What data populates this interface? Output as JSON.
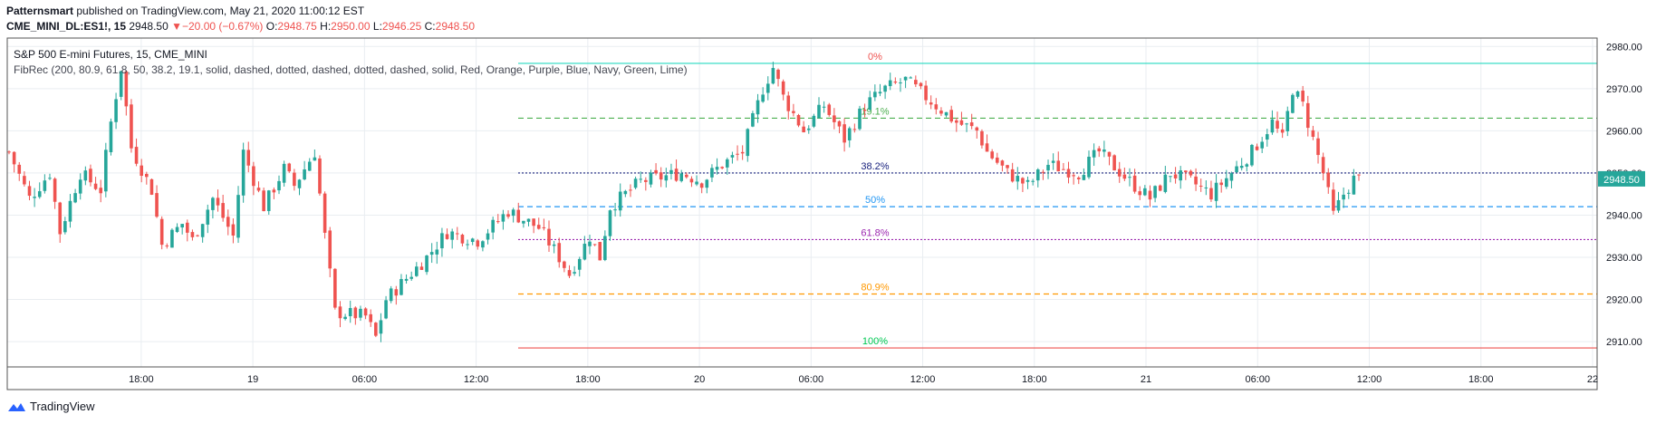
{
  "header": {
    "publisher": "Patternsmart",
    "published_text": "published on TradingView.com, May 21, 2020 11:00:12 EST",
    "symbol": "CME_MINI_DL:ES1!, 15",
    "last": "2948.50",
    "change": "−20.00 (−0.67%)",
    "o_label": "O:",
    "o_value": "2948.75",
    "h_label": "H:",
    "h_value": "2950.00",
    "l_label": "L:",
    "l_value": "2946.25",
    "c_label": "C:",
    "c_value": "2948.50"
  },
  "legend": {
    "title": "S&P 500 E-mini Futures, 15, CME_MINI",
    "indicator": "FibRec (200, 80.9, 61.8, 50, 38.2, 19.1, solid, dashed, dotted, dashed, dotted, dashed, solid, Red, Orange, Purple, Blue, Navy, Green, Lime)"
  },
  "price_badge": "2948.50",
  "footer": {
    "brand": "TradingView"
  },
  "colors": {
    "up": "#26a69a",
    "down": "#ef5350",
    "grid": "#e9edf1",
    "badge": "#26a69a"
  },
  "chart_data": {
    "type": "candlestick",
    "title": "S&P 500 E-mini Futures, 15, CME_MINI",
    "y_range": [
      2904,
      2982
    ],
    "y_ticks": [
      2910,
      2920,
      2930,
      2940,
      2950,
      2960,
      2970,
      2980
    ],
    "y_tick_labels": [
      "2910.00",
      "2920.00",
      "2930.00",
      "2940.00",
      "2950.00",
      "2960.00",
      "2970.00",
      "2980.00"
    ],
    "x_range_hours": [
      -7.2,
      56.2
    ],
    "x_ticks": [
      {
        "h": 0,
        "label": "18:00"
      },
      {
        "h": 6,
        "label": "19"
      },
      {
        "h": 12,
        "label": "06:00"
      },
      {
        "h": 18,
        "label": "12:00"
      },
      {
        "h": 24,
        "label": "18:00"
      },
      {
        "h": 30,
        "label": "20"
      },
      {
        "h": 36,
        "label": "06:00"
      },
      {
        "h": 42,
        "label": "12:00"
      },
      {
        "h": 48,
        "label": "18:00"
      },
      {
        "h": 54,
        "label": "21"
      },
      {
        "h": 60,
        "label": "06:00"
      },
      {
        "h": 66,
        "label": "12:00"
      },
      {
        "h": 72,
        "label": "18:00"
      },
      {
        "h": 78,
        "label": "22"
      }
    ],
    "fib_levels": [
      {
        "label": "0%",
        "price": 2976,
        "style": "solid",
        "color": "#26d9c0"
      },
      {
        "label": "19.1%",
        "price": 2963,
        "style": "dashed",
        "color": "#4caf50"
      },
      {
        "label": "38.2%",
        "price": 2950,
        "style": "dotted",
        "color": "#1a237e"
      },
      {
        "label": "50%",
        "price": 2942,
        "style": "dashed",
        "color": "#2196f3"
      },
      {
        "label": "61.8%",
        "price": 2934.2,
        "style": "dotted",
        "color": "#9c27b0"
      },
      {
        "label": "80.9%",
        "price": 2921.3,
        "style": "dashed",
        "color": "#ff9800"
      },
      {
        "label": "100%",
        "price": 2908.5,
        "style": "solid",
        "color": "#ef5350"
      }
    ],
    "fib_label_colors": [
      "#ef5350",
      "#4caf50",
      "#1a237e",
      "#2196f3",
      "#9c27b0",
      "#ff9800",
      "#00c853"
    ],
    "close_path": [
      [
        0,
        2955
      ],
      [
        4,
        2944
      ],
      [
        8,
        2950
      ],
      [
        10,
        2936
      ],
      [
        14,
        2950
      ],
      [
        18,
        2946
      ],
      [
        20,
        2962
      ],
      [
        22,
        2975
      ],
      [
        24,
        2956
      ],
      [
        28,
        2946
      ],
      [
        30,
        2933
      ],
      [
        34,
        2938
      ],
      [
        36,
        2934
      ],
      [
        40,
        2944
      ],
      [
        44,
        2935
      ],
      [
        46,
        2955
      ],
      [
        50,
        2942
      ],
      [
        54,
        2951
      ],
      [
        56,
        2947
      ],
      [
        60,
        2955
      ],
      [
        62,
        2935
      ],
      [
        64,
        2917
      ],
      [
        70,
        2916
      ],
      [
        72,
        2911
      ],
      [
        74,
        2920
      ],
      [
        82,
        2930
      ],
      [
        86,
        2936
      ],
      [
        92,
        2934
      ],
      [
        98,
        2941
      ],
      [
        104,
        2937
      ],
      [
        108,
        2930
      ],
      [
        110,
        2926
      ],
      [
        114,
        2935
      ],
      [
        116,
        2930
      ],
      [
        118,
        2942
      ],
      [
        124,
        2948
      ],
      [
        132,
        2950
      ],
      [
        136,
        2948
      ],
      [
        140,
        2952
      ],
      [
        144,
        2955
      ],
      [
        148,
        2970
      ],
      [
        150,
        2975
      ],
      [
        152,
        2968
      ],
      [
        156,
        2960
      ],
      [
        160,
        2966
      ],
      [
        164,
        2958
      ],
      [
        168,
        2966
      ],
      [
        172,
        2970
      ],
      [
        176,
        2972
      ],
      [
        182,
        2966
      ],
      [
        186,
        2962
      ],
      [
        190,
        2960
      ],
      [
        192,
        2955
      ],
      [
        196,
        2950
      ],
      [
        200,
        2947
      ],
      [
        204,
        2952
      ],
      [
        210,
        2950
      ],
      [
        214,
        2955
      ],
      [
        220,
        2948
      ],
      [
        224,
        2944
      ],
      [
        228,
        2950
      ],
      [
        232,
        2948
      ],
      [
        236,
        2945
      ],
      [
        240,
        2950
      ],
      [
        244,
        2955
      ],
      [
        248,
        2962
      ],
      [
        250,
        2958
      ],
      [
        252,
        2970
      ],
      [
        254,
        2966
      ],
      [
        256,
        2958
      ],
      [
        258,
        2950
      ],
      [
        260,
        2940
      ],
      [
        262,
        2945
      ],
      [
        264,
        2948.5
      ]
    ]
  }
}
